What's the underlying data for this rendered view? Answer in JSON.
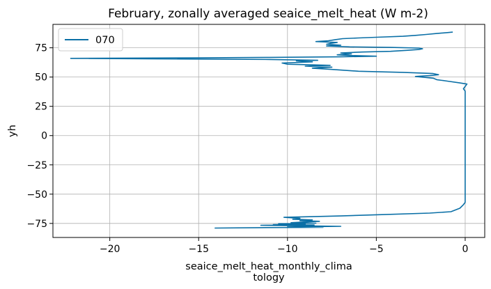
{
  "chart_data": {
    "type": "line",
    "title": "February, zonally averaged seaice_melt_heat (W m-2)",
    "xlabel_line1": "seaice_melt_heat_monthly_clima",
    "xlabel_line2": "tology",
    "ylabel": "yh",
    "xlim": [
      -23.2,
      1.1
    ],
    "ylim": [
      -87,
      95
    ],
    "xticks": [
      -20,
      -15,
      -10,
      -5,
      0
    ],
    "xtick_labels": [
      "−20",
      "−15",
      "−10",
      "−5",
      "0"
    ],
    "yticks": [
      -75,
      -50,
      -25,
      0,
      25,
      50,
      75
    ],
    "ytick_labels": [
      "−75",
      "−50",
      "−25",
      "0",
      "25",
      "50",
      "75"
    ],
    "grid": true,
    "legend_position": "top-left",
    "colors": {
      "line": "#0a6fa6",
      "grid": "#b0b0b0",
      "axes": "#000000",
      "legend_border": "#cccccc"
    },
    "series": [
      {
        "name": "070",
        "points": [
          [
            -14.1,
            -79.0
          ],
          [
            -11.6,
            -78.6
          ],
          [
            -8.0,
            -78.4
          ],
          [
            -10.0,
            -78.0
          ],
          [
            -7.0,
            -77.5
          ],
          [
            -9.5,
            -77.0
          ],
          [
            -11.5,
            -76.6
          ],
          [
            -8.5,
            -76.3
          ],
          [
            -10.8,
            -76.0
          ],
          [
            -9.0,
            -75.6
          ],
          [
            -10.5,
            -75.2
          ],
          [
            -8.4,
            -74.8
          ],
          [
            -9.8,
            -74.4
          ],
          [
            -9.1,
            -73.8
          ],
          [
            -8.2,
            -73.2
          ],
          [
            -9.3,
            -72.6
          ],
          [
            -8.6,
            -72.0
          ],
          [
            -9.7,
            -71.4
          ],
          [
            -9.3,
            -70.6
          ],
          [
            -10.2,
            -69.8
          ],
          [
            -7.0,
            -68.6
          ],
          [
            -5.0,
            -67.6
          ],
          [
            -2.0,
            -66.2
          ],
          [
            -0.8,
            -65.0
          ],
          [
            -0.3,
            -62.0
          ],
          [
            -0.1,
            -59.0
          ],
          [
            0.0,
            -57.0
          ],
          [
            0.0,
            -30.0
          ],
          [
            0.0,
            0.0
          ],
          [
            0.0,
            30.0
          ],
          [
            0.0,
            38.0
          ],
          [
            -0.1,
            40.0
          ],
          [
            0.0,
            42.0
          ],
          [
            0.1,
            44.0
          ],
          [
            -0.3,
            45.0
          ],
          [
            -1.0,
            46.5
          ],
          [
            -1.6,
            47.8
          ],
          [
            -1.8,
            49.0
          ],
          [
            -2.8,
            50.5
          ],
          [
            -2.0,
            51.2
          ],
          [
            -1.5,
            52.0
          ],
          [
            -1.8,
            53.0
          ],
          [
            -3.5,
            54.0
          ],
          [
            -6.0,
            55.0
          ],
          [
            -7.5,
            56.5
          ],
          [
            -8.6,
            57.6
          ],
          [
            -7.5,
            58.5
          ],
          [
            -9.0,
            59.3
          ],
          [
            -7.6,
            60.0
          ],
          [
            -10.0,
            61.0
          ],
          [
            -10.3,
            62.0
          ],
          [
            -8.6,
            63.0
          ],
          [
            -9.5,
            63.8
          ],
          [
            -8.3,
            64.3
          ],
          [
            -11.0,
            65.0
          ],
          [
            -22.2,
            66.0
          ],
          [
            -15.0,
            66.4
          ],
          [
            -11.0,
            66.8
          ],
          [
            -7.0,
            67.3
          ],
          [
            -5.0,
            67.8
          ],
          [
            -6.5,
            68.4
          ],
          [
            -7.2,
            69.0
          ],
          [
            -6.4,
            69.8
          ],
          [
            -7.0,
            70.6
          ],
          [
            -5.8,
            71.4
          ],
          [
            -4.2,
            72.0
          ],
          [
            -3.3,
            72.8
          ],
          [
            -2.6,
            73.5
          ],
          [
            -2.4,
            74.2
          ],
          [
            -2.6,
            74.8
          ],
          [
            -4.2,
            75.3
          ],
          [
            -6.5,
            75.8
          ],
          [
            -7.8,
            76.5
          ],
          [
            -7.0,
            77.2
          ],
          [
            -7.8,
            78.0
          ],
          [
            -7.5,
            79.0
          ],
          [
            -7.2,
            79.6
          ],
          [
            -8.4,
            80.3
          ],
          [
            -7.7,
            81.0
          ],
          [
            -7.3,
            82.0
          ],
          [
            -6.9,
            82.8
          ],
          [
            -6.0,
            83.4
          ],
          [
            -5.0,
            84.0
          ],
          [
            -3.5,
            84.8
          ],
          [
            -2.8,
            85.6
          ],
          [
            -2.2,
            86.4
          ],
          [
            -1.6,
            87.2
          ],
          [
            -1.0,
            88.0
          ],
          [
            -0.7,
            88.4
          ]
        ]
      }
    ]
  }
}
